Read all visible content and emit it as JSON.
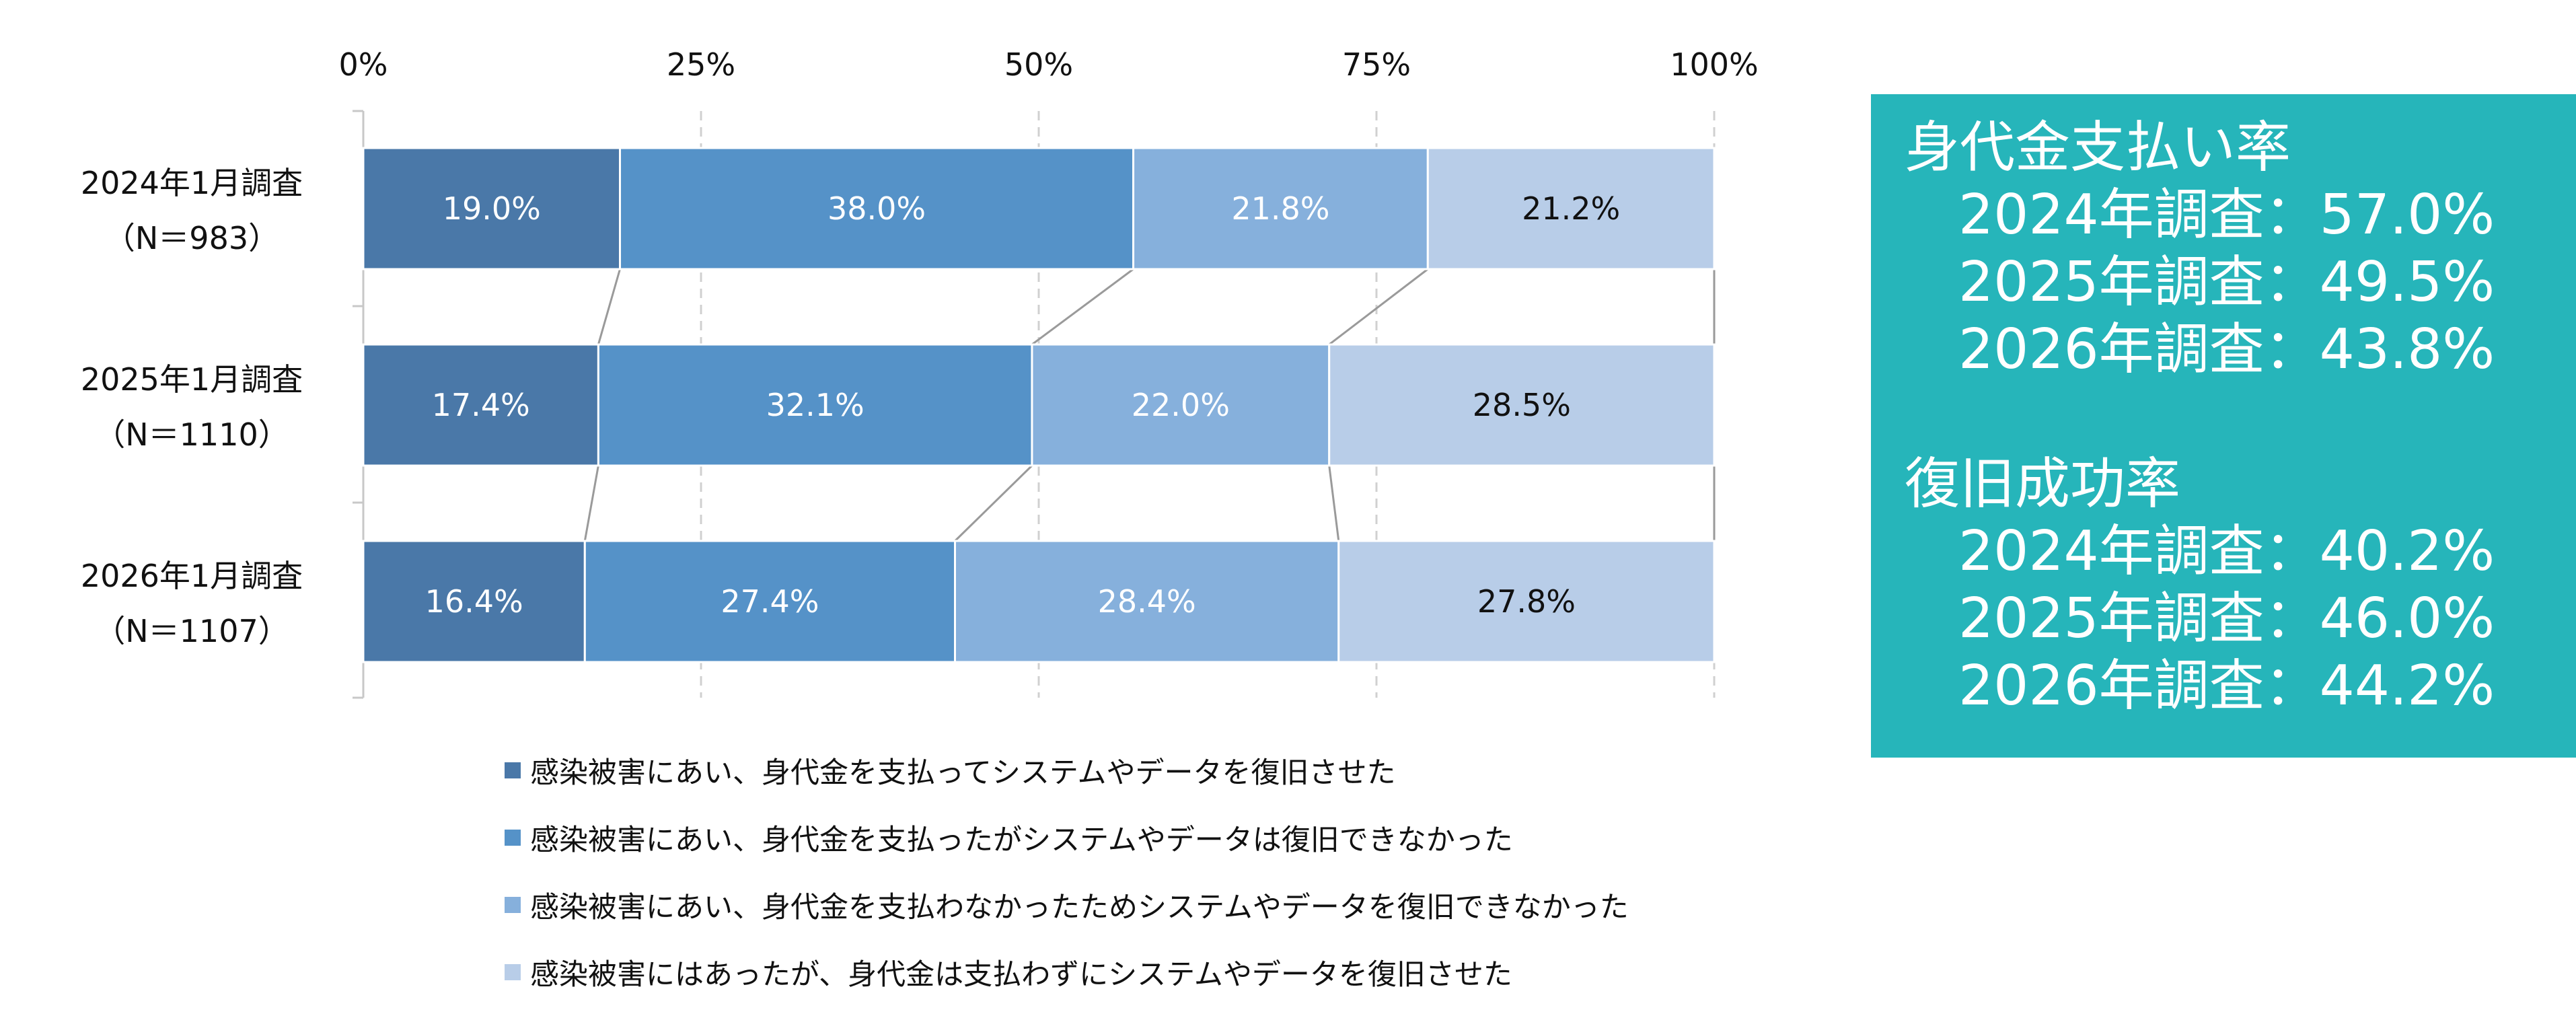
{
  "chart_data": {
    "type": "bar",
    "orientation": "horizontal",
    "stacked": true,
    "categories": [
      "2024年1月調査\n（N＝983）",
      "2025年1月調査\n（N＝1110）",
      "2026年1月調査\n（N＝1107）"
    ],
    "series": [
      {
        "name": "感染被害にあい、身代金を支払ってシステムやデータを復旧させた",
        "values": [
          19.0,
          17.4,
          16.4
        ],
        "color": "#4a78a8"
      },
      {
        "name": "感染被害にあい、身代金を支払ったがシステムやデータは復旧できなかった",
        "values": [
          38.0,
          32.1,
          27.4
        ],
        "color": "#5592c8"
      },
      {
        "name": "感染被害にあい、身代金を支払わなかったためシステムやデータを復旧できなかった",
        "values": [
          21.8,
          22.0,
          28.4
        ],
        "color": "#86b0dc"
      },
      {
        "name": "感染被害にはあったが、身代金は支払わずにシステムやデータを復旧させた",
        "values": [
          21.2,
          28.5,
          27.8
        ],
        "color": "#b8cde8"
      }
    ],
    "data_labels": [
      [
        "19.0%",
        "38.0%",
        "21.8%",
        "21.2%"
      ],
      [
        "17.4%",
        "32.1%",
        "22.0%",
        "28.5%"
      ],
      [
        "16.4%",
        "27.4%",
        "28.4%",
        "27.8%"
      ]
    ],
    "label_colors": [
      "#ffffff",
      "#ffffff",
      "#ffffff",
      "#111111"
    ],
    "x_ticks": [
      0,
      25,
      50,
      75,
      100
    ],
    "x_tick_labels": [
      "0%",
      "25%",
      "50%",
      "75%",
      "100%"
    ],
    "xlim": [
      0,
      100
    ],
    "x_axis_position": "top",
    "grid": "vertical dashed",
    "legend_placement": "bottom",
    "title": "",
    "xlabel": "",
    "ylabel": ""
  },
  "panel": {
    "background": "#26b5ba",
    "groups": [
      {
        "title": "身代金支払い率",
        "rows": [
          "2024年調査：57.0%",
          "2025年調査：49.5%",
          "2026年調査：43.8%"
        ]
      },
      {
        "title": "復旧成功率",
        "rows": [
          "2024年調査：40.2%",
          "2025年調査：46.0%",
          "2026年調査：44.2%"
        ]
      }
    ]
  }
}
